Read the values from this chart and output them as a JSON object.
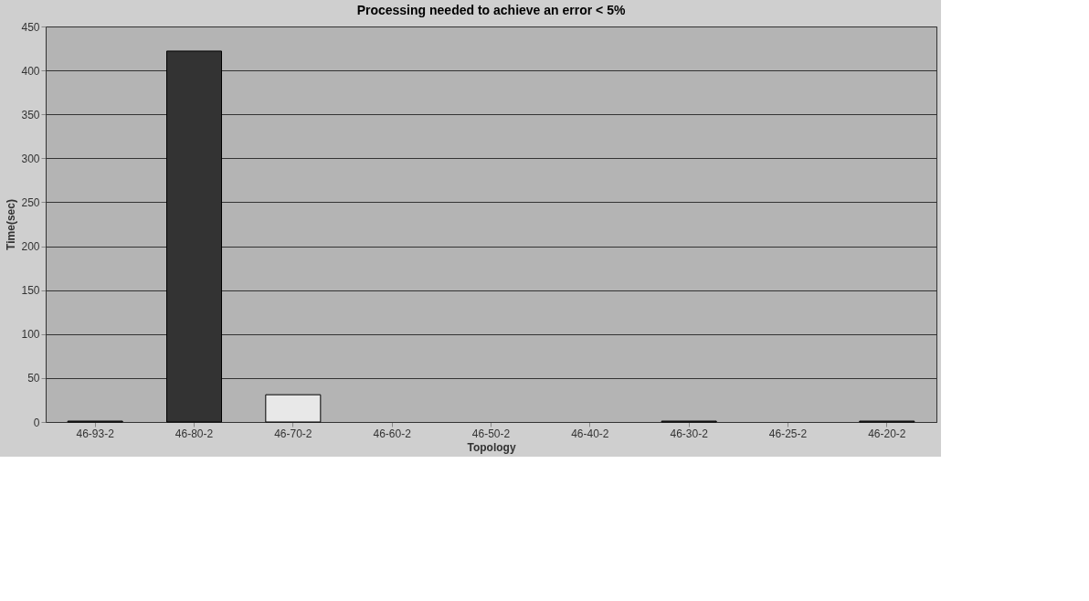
{
  "chart_data": {
    "type": "bar",
    "title": "Processing needed to achieve an error < 5%",
    "xlabel": "Topology",
    "ylabel": "Time(sec)",
    "categories": [
      "46-93-2",
      "46-80-2",
      "46-70-2",
      "46-60-2",
      "46-50-2",
      "46-40-2",
      "46-30-2",
      "46-25-2",
      "46-20-2"
    ],
    "values": [
      1,
      422,
      31,
      0,
      0,
      0,
      1,
      0,
      1
    ],
    "colors": [
      "#555555",
      "#333333",
      "#e8e8e8",
      "#555555",
      "#555555",
      "#555555",
      "#555555",
      "#555555",
      "#555555"
    ],
    "ylim": [
      0,
      450
    ],
    "yticks": [
      0,
      50,
      100,
      150,
      200,
      250,
      300,
      350,
      400,
      450
    ],
    "grid": "y"
  }
}
